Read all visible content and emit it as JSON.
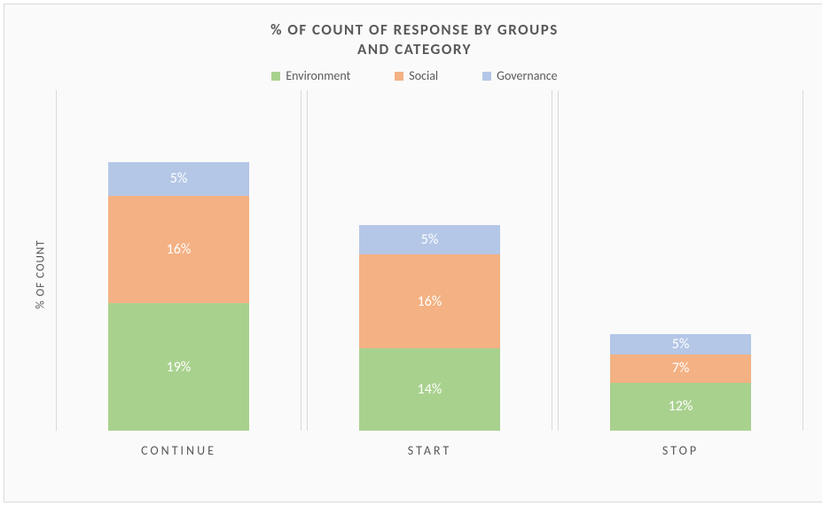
{
  "chart": {
    "type": "stacked-bar",
    "title_line1": "% OF COUNT OF RESPONSE BY GROUPS",
    "title_line2": "AND CATEGORY",
    "title_fontsize": 17,
    "ylabel": "% OF COUNT",
    "ylabel_fontsize": 13,
    "xlabel_fontsize": 14,
    "legend_fontsize": 14,
    "value_label_fontsize": 16,
    "background_color": "#fafafa",
    "border_color": "#d9d9d9",
    "panel_border_color": "#d9d9d9",
    "text_color": "#595959",
    "value_label_color": "#ffffff",
    "y_scale_max_percent": 45,
    "series": [
      {
        "name": "Environment",
        "color": "#a9d18e"
      },
      {
        "name": "Social",
        "color": "#f4b183"
      },
      {
        "name": "Governance",
        "color": "#b4c7e7"
      }
    ],
    "categories": [
      {
        "label": "CONTINUE",
        "segments": [
          {
            "series": "Environment",
            "value": 19,
            "label": "19%"
          },
          {
            "series": "Social",
            "value": 16,
            "label": "16%"
          },
          {
            "series": "Governance",
            "value": 5,
            "label": "5%"
          }
        ]
      },
      {
        "label": "START",
        "segments": [
          {
            "series": "Environment",
            "value": 14,
            "label": "14%"
          },
          {
            "series": "Social",
            "value": 16,
            "label": "16%"
          },
          {
            "series": "Governance",
            "value": 5,
            "label": "5%"
          }
        ]
      },
      {
        "label": "STOP",
        "segments": [
          {
            "series": "Environment",
            "value": 12,
            "label": "12%"
          },
          {
            "series": "Social",
            "value": 7,
            "label": "7%"
          },
          {
            "series": "Governance",
            "value": 5,
            "label": "5%"
          }
        ]
      }
    ]
  }
}
